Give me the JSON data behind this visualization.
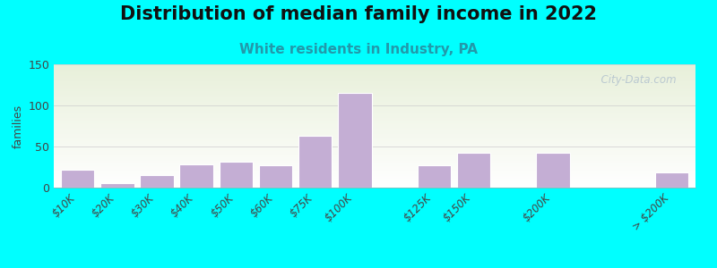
{
  "title": "Distribution of median family income in 2022",
  "subtitle": "White residents in Industry, PA",
  "ylabel": "families",
  "background_color": "#00FFFF",
  "plot_bg_top": "#e8f0da",
  "plot_bg_bottom": "#ffffff",
  "bar_color": "#c4aed4",
  "bar_edge_color": "#ffffff",
  "categories": [
    "$10K",
    "$20K",
    "$30K",
    "$40K",
    "$50K",
    "$60K",
    "$75K",
    "$100K",
    "$125K",
    "$150K",
    "$200K",
    "> $200K"
  ],
  "values": [
    22,
    5,
    15,
    28,
    32,
    27,
    63,
    115,
    27,
    42,
    42,
    18
  ],
  "x_positions": [
    0,
    1,
    2,
    3,
    4,
    5,
    6,
    7,
    9,
    10,
    12,
    15
  ],
  "ylim": [
    0,
    150
  ],
  "yticks": [
    0,
    50,
    100,
    150
  ],
  "watermark": "  City-Data.com",
  "title_fontsize": 15,
  "subtitle_fontsize": 11,
  "subtitle_color": "#2299aa"
}
